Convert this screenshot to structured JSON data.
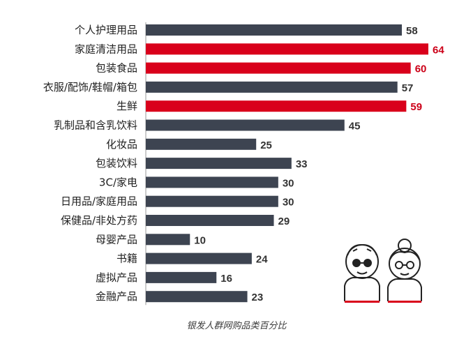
{
  "chart_data": {
    "type": "bar",
    "orientation": "horizontal",
    "categories": [
      "个人护理用品",
      "家庭清洁用品",
      "包装食品",
      "衣服/配饰/鞋帽/箱包",
      "生鲜",
      "乳制品和含乳饮料",
      "化妆品",
      "包装饮料",
      "3C/家电",
      "日用品/家庭用品",
      "保健品/非处方药",
      "母婴产品",
      "书籍",
      "虚拟产品",
      "金融产品"
    ],
    "values": [
      58,
      64,
      60,
      57,
      59,
      45,
      25,
      33,
      30,
      30,
      29,
      10,
      24,
      16,
      23
    ],
    "highlighted": [
      false,
      true,
      true,
      false,
      true,
      false,
      false,
      false,
      false,
      false,
      false,
      false,
      false,
      false,
      false
    ],
    "xlim": [
      0,
      64
    ]
  },
  "caption": "银发人群网购品类百分比",
  "colors": {
    "bar": "#3d4451",
    "highlight": "#d9001b",
    "label": "#333333",
    "highlight_label": "#cc0018",
    "axis": "#999999"
  },
  "icons": [
    "elderly-man-icon",
    "elderly-woman-icon"
  ]
}
